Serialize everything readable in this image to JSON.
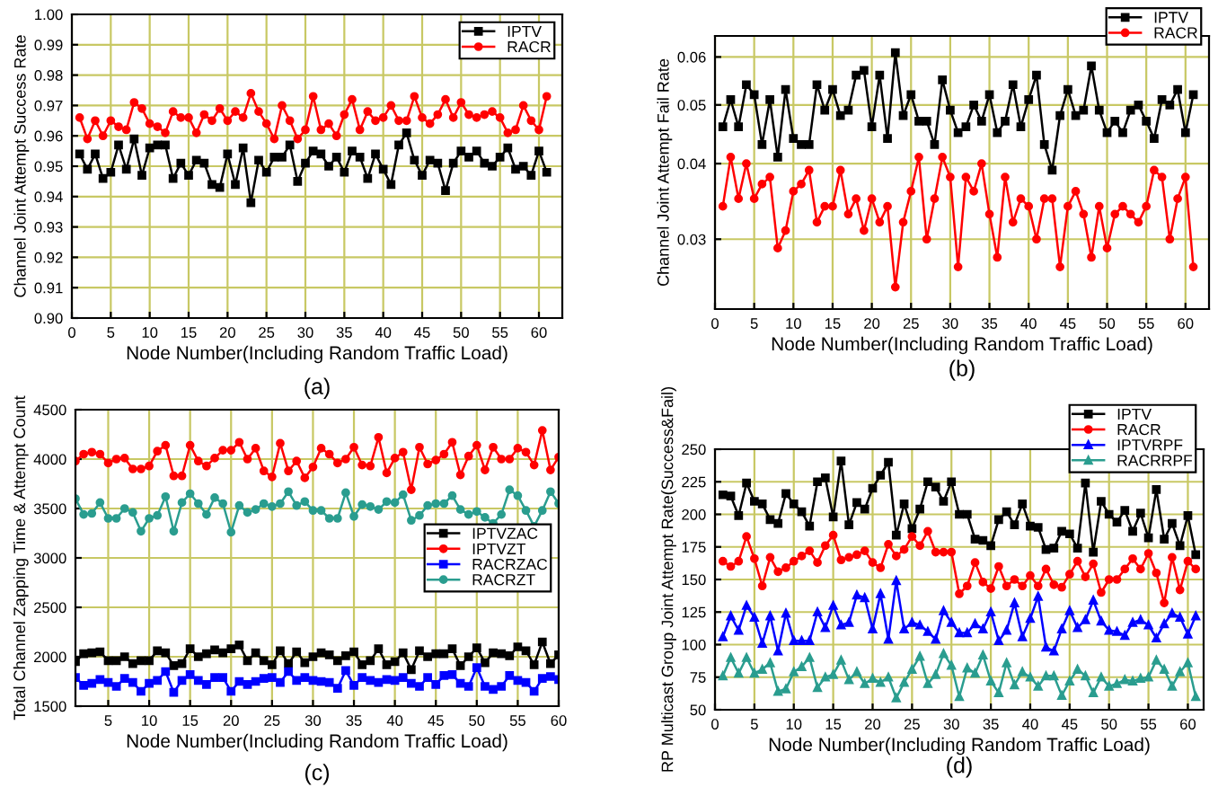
{
  "chart_data": [
    {
      "type": "line",
      "title": "(a)",
      "xlabel": "Node Number(Including Random Traffic Load)",
      "ylabel": "Channel Joint Attempt Success Rate",
      "x": [
        1,
        2,
        3,
        4,
        5,
        6,
        7,
        8,
        9,
        10,
        11,
        12,
        13,
        14,
        15,
        16,
        17,
        18,
        19,
        20,
        21,
        22,
        23,
        24,
        25,
        26,
        27,
        28,
        29,
        30,
        31,
        32,
        33,
        34,
        35,
        36,
        37,
        38,
        39,
        40,
        41,
        42,
        43,
        44,
        45,
        46,
        47,
        48,
        49,
        50,
        51,
        52,
        53,
        54,
        55,
        56,
        57,
        58,
        59,
        60,
        61
      ],
      "xlim": [
        0,
        63
      ],
      "xticks": [
        0,
        5,
        10,
        15,
        20,
        25,
        30,
        35,
        40,
        45,
        50,
        55,
        60
      ],
      "ylim": [
        0.9,
        1.0
      ],
      "yticks": [
        {
          "value": 0.9,
          "label": "0.90"
        },
        {
          "value": 0.91,
          "label": "0.91"
        },
        {
          "value": 0.92,
          "label": "0.92"
        },
        {
          "value": 0.93,
          "label": "0.93"
        },
        {
          "value": 0.94,
          "label": "0.94"
        },
        {
          "value": 0.95,
          "label": "0.95"
        },
        {
          "value": 0.96,
          "label": "0.96"
        },
        {
          "value": 0.97,
          "label": "0.97"
        },
        {
          "value": 0.98,
          "label": "0.98"
        },
        {
          "value": 0.99,
          "label": "0.99"
        },
        {
          "value": 1.0,
          "label": "1.00"
        }
      ],
      "grid": true,
      "legend": "top right",
      "line_style": "solid",
      "series": [
        {
          "name": "IPTV",
          "color": "#000000",
          "marker": "square",
          "values": [
            0.954,
            0.949,
            0.954,
            0.946,
            0.948,
            0.957,
            0.949,
            0.959,
            0.947,
            0.956,
            0.957,
            0.957,
            0.946,
            0.951,
            0.947,
            0.952,
            0.951,
            0.944,
            0.943,
            0.954,
            0.944,
            0.956,
            0.938,
            0.952,
            0.948,
            0.953,
            0.953,
            0.957,
            0.945,
            0.951,
            0.955,
            0.954,
            0.95,
            0.953,
            0.948,
            0.955,
            0.953,
            0.946,
            0.954,
            0.949,
            0.944,
            0.957,
            0.961,
            0.952,
            0.947,
            0.952,
            0.951,
            0.942,
            0.951,
            0.955,
            0.953,
            0.955,
            0.951,
            0.95,
            0.953,
            0.956,
            0.949,
            0.95,
            0.947,
            0.955,
            0.948
          ]
        },
        {
          "name": "RACR",
          "color": "#ff0000",
          "marker": "circle",
          "values": [
            0.966,
            0.959,
            0.965,
            0.96,
            0.965,
            0.963,
            0.962,
            0.971,
            0.969,
            0.964,
            0.963,
            0.961,
            0.968,
            0.966,
            0.966,
            0.961,
            0.967,
            0.965,
            0.969,
            0.965,
            0.968,
            0.966,
            0.974,
            0.968,
            0.964,
            0.959,
            0.97,
            0.965,
            0.959,
            0.962,
            0.973,
            0.962,
            0.964,
            0.96,
            0.967,
            0.972,
            0.962,
            0.968,
            0.965,
            0.966,
            0.97,
            0.965,
            0.965,
            0.973,
            0.966,
            0.964,
            0.967,
            0.972,
            0.966,
            0.971,
            0.967,
            0.966,
            0.967,
            0.968,
            0.966,
            0.961,
            0.962,
            0.97,
            0.965,
            0.962,
            0.973
          ]
        }
      ]
    },
    {
      "type": "line",
      "title": "(b)",
      "xlabel": "Node Number(Including Random Traffic Load)",
      "ylabel": "Channel Joint Attempt Fail Rate",
      "x": [
        1,
        2,
        3,
        4,
        5,
        6,
        7,
        8,
        9,
        10,
        11,
        12,
        13,
        14,
        15,
        16,
        17,
        18,
        19,
        20,
        21,
        22,
        23,
        24,
        25,
        26,
        27,
        28,
        29,
        30,
        31,
        32,
        33,
        34,
        35,
        36,
        37,
        38,
        39,
        40,
        41,
        42,
        43,
        44,
        45,
        46,
        47,
        48,
        49,
        50,
        51,
        52,
        53,
        54,
        55,
        56,
        57,
        58,
        59,
        60,
        61
      ],
      "xlim": [
        0,
        63
      ],
      "xticks": [
        0,
        5,
        10,
        15,
        20,
        25,
        30,
        35,
        40,
        45,
        50,
        55,
        60
      ],
      "log": "y",
      "ylim": [
        0.023,
        0.065
      ],
      "yticks": [
        0.03,
        0.04,
        0.05,
        0.06
      ],
      "grid": true,
      "legend": "top right",
      "line_style": "solid",
      "series": [
        {
          "name": "IPTV",
          "color": "#000000",
          "marker": "square",
          "values": [
            0.046,
            0.051,
            0.046,
            0.054,
            0.052,
            0.043,
            0.051,
            0.041,
            0.053,
            0.044,
            0.043,
            0.043,
            0.054,
            0.049,
            0.053,
            0.048,
            0.049,
            0.056,
            0.057,
            0.046,
            0.056,
            0.044,
            0.061,
            0.048,
            0.052,
            0.047,
            0.047,
            0.043,
            0.055,
            0.049,
            0.045,
            0.046,
            0.05,
            0.047,
            0.052,
            0.045,
            0.047,
            0.054,
            0.046,
            0.051,
            0.056,
            0.043,
            0.039,
            0.048,
            0.053,
            0.048,
            0.049,
            0.058,
            0.049,
            0.045,
            0.047,
            0.045,
            0.049,
            0.05,
            0.047,
            0.044,
            0.051,
            0.05,
            0.053,
            0.045,
            0.052
          ]
        },
        {
          "name": "RACR",
          "color": "#ff0000",
          "marker": "circle",
          "values": [
            0.034,
            0.041,
            0.035,
            0.04,
            0.035,
            0.037,
            0.038,
            0.029,
            0.031,
            0.036,
            0.037,
            0.039,
            0.032,
            0.034,
            0.034,
            0.039,
            0.033,
            0.035,
            0.031,
            0.035,
            0.032,
            0.034,
            0.025,
            0.032,
            0.036,
            0.041,
            0.03,
            0.035,
            0.041,
            0.038,
            0.027,
            0.038,
            0.036,
            0.04,
            0.033,
            0.028,
            0.038,
            0.032,
            0.035,
            0.034,
            0.03,
            0.035,
            0.035,
            0.027,
            0.034,
            0.036,
            0.033,
            0.028,
            0.034,
            0.029,
            0.033,
            0.034,
            0.033,
            0.032,
            0.034,
            0.039,
            0.038,
            0.03,
            0.035,
            0.038,
            0.027
          ]
        }
      ]
    },
    {
      "type": "line",
      "title": "(c)",
      "xlabel": "Node Number(Including Random Traffic Load)",
      "ylabel": "Total Channel Zapping Time & Attempt Count",
      "x": [
        1,
        2,
        3,
        4,
        5,
        6,
        7,
        8,
        9,
        10,
        11,
        12,
        13,
        14,
        15,
        16,
        17,
        18,
        19,
        20,
        21,
        22,
        23,
        24,
        25,
        26,
        27,
        28,
        29,
        30,
        31,
        32,
        33,
        34,
        35,
        36,
        37,
        38,
        39,
        40,
        41,
        42,
        43,
        44,
        45,
        46,
        47,
        48,
        49,
        50,
        51,
        52,
        53,
        54,
        55,
        56,
        57,
        58,
        59,
        60
      ],
      "xlim": [
        1,
        60
      ],
      "xticks": [
        5,
        10,
        15,
        20,
        25,
        30,
        35,
        40,
        45,
        50,
        55,
        60
      ],
      "ylim": [
        1500,
        4500
      ],
      "yticks": [
        1500,
        2000,
        2500,
        3000,
        3500,
        4000,
        4500
      ],
      "grid": true,
      "legend": "right",
      "line_style": "solid",
      "series": [
        {
          "name": "IPTVZAC",
          "color": "#000000",
          "marker": "square",
          "values": [
            1950,
            2030,
            2040,
            2050,
            1960,
            1960,
            2000,
            1930,
            1960,
            1960,
            2060,
            2040,
            1910,
            1930,
            2080,
            2000,
            2030,
            2070,
            2040,
            2080,
            2120,
            1960,
            2040,
            1960,
            1920,
            2060,
            1930,
            2050,
            1940,
            2000,
            2040,
            2020,
            1960,
            2010,
            2050,
            1920,
            1960,
            2080,
            1920,
            1950,
            2040,
            1870,
            2060,
            2000,
            2030,
            2030,
            2080,
            1910,
            2000,
            2090,
            1940,
            2040,
            2030,
            2010,
            2100,
            2060,
            1920,
            2150,
            1930,
            2020
          ]
        },
        {
          "name": "IPTVZT",
          "color": "#ff0000",
          "marker": "circle",
          "values": [
            3980,
            4050,
            4070,
            4050,
            3960,
            4000,
            4010,
            3900,
            3900,
            3930,
            4080,
            4140,
            3830,
            3830,
            4140,
            3980,
            3930,
            4010,
            4090,
            4090,
            4170,
            4000,
            4110,
            3880,
            3820,
            4160,
            3880,
            3980,
            3810,
            3920,
            4110,
            4050,
            3960,
            4000,
            4120,
            3940,
            3930,
            4220,
            3860,
            4010,
            4070,
            3690,
            4120,
            3950,
            3990,
            4050,
            4170,
            3840,
            4030,
            4140,
            3890,
            4120,
            4000,
            4000,
            4110,
            4070,
            3940,
            4290,
            3890,
            4020
          ]
        },
        {
          "name": "RACRZAC",
          "color": "#0000ff",
          "marker": "square",
          "values": [
            1790,
            1710,
            1730,
            1770,
            1740,
            1700,
            1780,
            1740,
            1650,
            1730,
            1760,
            1850,
            1640,
            1760,
            1820,
            1760,
            1720,
            1790,
            1790,
            1650,
            1750,
            1720,
            1750,
            1780,
            1790,
            1740,
            1850,
            1760,
            1790,
            1760,
            1750,
            1740,
            1680,
            1860,
            1710,
            1790,
            1760,
            1740,
            1770,
            1760,
            1790,
            1730,
            1700,
            1790,
            1720,
            1810,
            1820,
            1730,
            1700,
            1890,
            1700,
            1670,
            1700,
            1810,
            1760,
            1740,
            1650,
            1780,
            1800,
            1770
          ]
        },
        {
          "name": "RACRZT",
          "color": "#2a9d8f",
          "marker": "circle",
          "values": [
            3600,
            3440,
            3450,
            3560,
            3400,
            3400,
            3500,
            3460,
            3270,
            3400,
            3430,
            3620,
            3270,
            3560,
            3650,
            3550,
            3440,
            3610,
            3550,
            3260,
            3530,
            3460,
            3490,
            3550,
            3520,
            3550,
            3670,
            3530,
            3570,
            3480,
            3480,
            3400,
            3400,
            3660,
            3420,
            3540,
            3520,
            3490,
            3570,
            3560,
            3640,
            3380,
            3430,
            3530,
            3550,
            3550,
            3630,
            3490,
            3440,
            3470,
            3410,
            3350,
            3440,
            3690,
            3630,
            3480,
            3320,
            3480,
            3670,
            3550
          ]
        }
      ]
    },
    {
      "type": "line",
      "title": "(d)",
      "xlabel": "Node Number(Including Random Traffic Load)",
      "ylabel": "RP Multicast Group Joint Attempt Rate(Success&Fail)",
      "x": [
        1,
        2,
        3,
        4,
        5,
        6,
        7,
        8,
        9,
        10,
        11,
        12,
        13,
        14,
        15,
        16,
        17,
        18,
        19,
        20,
        21,
        22,
        23,
        24,
        25,
        26,
        27,
        28,
        29,
        30,
        31,
        32,
        33,
        34,
        35,
        36,
        37,
        38,
        39,
        40,
        41,
        42,
        43,
        44,
        45,
        46,
        47,
        48,
        49,
        50,
        51,
        52,
        53,
        54,
        55,
        56,
        57,
        58,
        59,
        60,
        61
      ],
      "xlim": [
        0,
        62
      ],
      "xticks": [
        0,
        5,
        10,
        15,
        20,
        25,
        30,
        35,
        40,
        45,
        50,
        55,
        60
      ],
      "ylim": [
        50,
        250
      ],
      "yticks": [
        50,
        75,
        100,
        125,
        150,
        175,
        200,
        225,
        250
      ],
      "grid": true,
      "legend": "top right",
      "line_style": "solid",
      "series": [
        {
          "name": "IPTV",
          "color": "#000000",
          "marker": "square",
          "values": [
            215,
            214,
            199,
            224,
            210,
            208,
            196,
            193,
            216,
            208,
            202,
            191,
            225,
            228,
            198,
            241,
            192,
            209,
            204,
            220,
            230,
            240,
            184,
            208,
            189,
            204,
            225,
            221,
            210,
            225,
            200,
            200,
            181,
            180,
            176,
            196,
            202,
            192,
            208,
            191,
            190,
            173,
            174,
            187,
            185,
            174,
            224,
            171,
            210,
            200,
            194,
            203,
            187,
            201,
            182,
            219,
            181,
            193,
            176,
            199,
            169
          ]
        },
        {
          "name": "RACR",
          "color": "#ff0000",
          "marker": "circle",
          "values": [
            164,
            160,
            164,
            183,
            166,
            145,
            167,
            156,
            159,
            164,
            168,
            172,
            163,
            176,
            184,
            165,
            167,
            169,
            172,
            163,
            159,
            177,
            168,
            173,
            183,
            176,
            187,
            171,
            171,
            171,
            139,
            145,
            163,
            148,
            143,
            160,
            145,
            150,
            145,
            153,
            145,
            158,
            146,
            144,
            154,
            164,
            152,
            162,
            140,
            150,
            150,
            158,
            166,
            158,
            170,
            155,
            132,
            167,
            142,
            164,
            158
          ]
        },
        {
          "name": "IPTVRPF",
          "color": "#0000ff",
          "marker": "triangle",
          "values": [
            106,
            122,
            111,
            130,
            121,
            101,
            122,
            95,
            124,
            103,
            103,
            103,
            125,
            113,
            130,
            115,
            117,
            138,
            136,
            112,
            139,
            104,
            149,
            112,
            117,
            115,
            110,
            104,
            126,
            117,
            109,
            109,
            116,
            112,
            125,
            103,
            111,
            132,
            106,
            120,
            137,
            98,
            95,
            112,
            126,
            113,
            119,
            134,
            118,
            111,
            110,
            107,
            117,
            119,
            115,
            105,
            116,
            124,
            121,
            108,
            122
          ]
        },
        {
          "name": "RACRRPF",
          "color": "#2a9d8f",
          "marker": "triangle",
          "values": [
            76,
            90,
            78,
            90,
            78,
            81,
            86,
            64,
            66,
            79,
            83,
            90,
            67,
            75,
            77,
            88,
            73,
            79,
            70,
            74,
            71,
            75,
            59,
            71,
            81,
            91,
            70,
            77,
            93,
            84,
            60,
            82,
            78,
            92,
            72,
            63,
            86,
            69,
            79,
            75,
            68,
            76,
            76,
            61,
            72,
            81,
            76,
            63,
            75,
            68,
            70,
            73,
            72,
            74,
            75,
            88,
            81,
            68,
            79,
            86,
            60
          ]
        }
      ]
    }
  ]
}
